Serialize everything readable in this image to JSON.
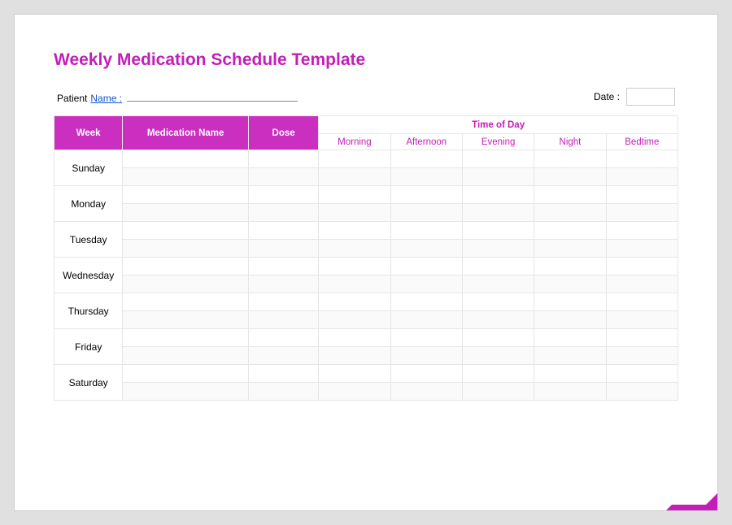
{
  "title": "Weekly Medication Schedule Template",
  "patient_label": "Patient",
  "name_label": "Name :",
  "date_label": "Date :",
  "table": {
    "headers": {
      "week": "Week",
      "medication": "Medication Name",
      "dose": "Dose",
      "time_of_day": "Time of Day",
      "times": [
        "Morning",
        "Afternoon",
        "Evening",
        "Night",
        "Bedtime"
      ]
    },
    "days": [
      "Sunday",
      "Monday",
      "Tuesday",
      "Wednesday",
      "Thursday",
      "Friday",
      "Saturday"
    ]
  },
  "colors": {
    "accent": "#c21fb8",
    "header_bg": "#ca2fc0",
    "border": "#e6e6e6",
    "alt_row": "#fafafa",
    "page_bg": "#ffffff",
    "outer_bg": "#e0e0e0",
    "link": "#1155cc"
  }
}
